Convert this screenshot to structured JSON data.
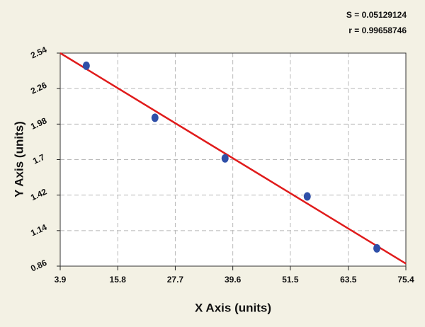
{
  "chart_data": {
    "type": "scatter",
    "annotations": [
      "S = 0.05129124",
      "r = 0.99658746"
    ],
    "x_label": "X Axis (units)",
    "y_label": "Y Axis (units)",
    "x": [
      9.3,
      23.5,
      38.0,
      55.0,
      69.4
    ],
    "y": [
      2.44,
      2.03,
      1.71,
      1.41,
      1.0
    ],
    "color": "#2f4fa8",
    "fit": {
      "x": [
        3.9,
        75.4
      ],
      "y": [
        2.54,
        0.88
      ],
      "color": "#e01b1b"
    },
    "xlim": [
      3.9,
      75.4
    ],
    "xticks": [
      3.9,
      15.8,
      27.7,
      39.6,
      51.5,
      63.5,
      75.4
    ],
    "ylim": [
      0.86,
      2.54
    ],
    "yticks": [
      0.86,
      1.14,
      1.42,
      1.7,
      1.98,
      2.26,
      2.54
    ],
    "grid": true
  }
}
